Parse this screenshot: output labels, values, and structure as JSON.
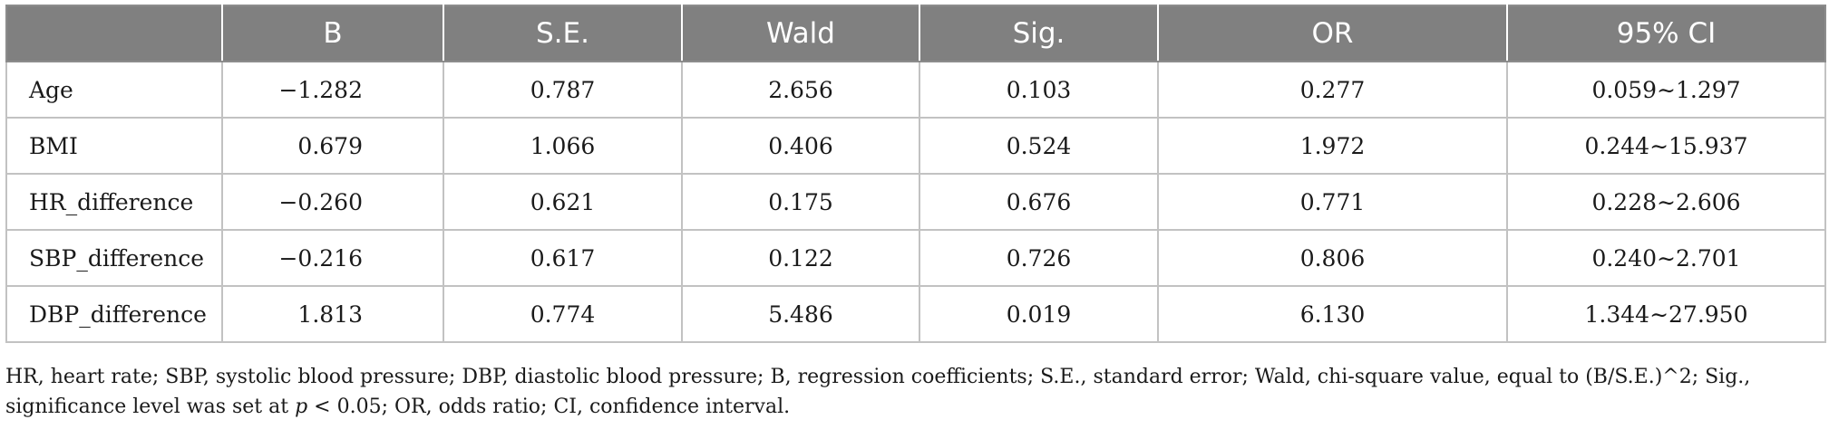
{
  "table": {
    "headers": [
      "",
      "B",
      "S.E.",
      "Wald",
      "Sig.",
      "OR",
      "95% CI"
    ],
    "rows": [
      {
        "label": "Age",
        "b": "−1.282",
        "se": "0.787",
        "wald": "2.656",
        "sig": "0.103",
        "or": "0.277",
        "ci": "0.059∼1.297"
      },
      {
        "label": "BMI",
        "b": "0.679",
        "se": "1.066",
        "wald": "0.406",
        "sig": "0.524",
        "or": "1.972",
        "ci": "0.244∼15.937"
      },
      {
        "label": "HR_difference",
        "b": "−0.260",
        "se": "0.621",
        "wald": "0.175",
        "sig": "0.676",
        "or": "0.771",
        "ci": "0.228∼2.606"
      },
      {
        "label": "SBP_difference",
        "b": "−0.216",
        "se": "0.617",
        "wald": "0.122",
        "sig": "0.726",
        "or": "0.806",
        "ci": "0.240∼2.701"
      },
      {
        "label": "DBP_difference",
        "b": "1.813",
        "se": "0.774",
        "wald": "5.486",
        "sig": "0.019",
        "or": "6.130",
        "ci": "1.344∼27.950"
      }
    ]
  },
  "footnote": {
    "part1": "HR, heart rate; SBP, systolic blood pressure; DBP, diastolic blood pressure; B, regression coefficients; S.E., standard error; Wald, chi-square value, equal to (B/S.E.)^2; Sig., significance level was set at ",
    "p_symbol": "p",
    "part2": " < 0.05; OR, odds ratio; CI, confidence interval."
  },
  "colors": {
    "header_bg": "#808080",
    "header_text": "#ffffff",
    "grid": "#c2c2c2"
  }
}
